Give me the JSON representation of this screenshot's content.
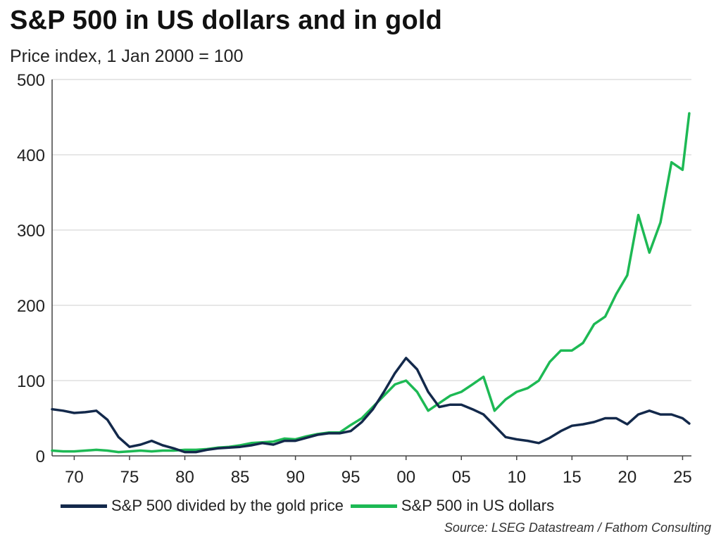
{
  "title": "S&P 500 in US dollars and in gold",
  "subtitle": "Price index, 1 Jan 2000 = 100",
  "source": "Source: LSEG Datastream / Fathom Consulting",
  "colors": {
    "gold_series": "#13294b",
    "usd_series": "#1db954",
    "gridline": "#cfcfcf",
    "axis": "#444444"
  },
  "chart_data": {
    "type": "line",
    "title": "S&P 500 in US dollars and in gold",
    "subtitle": "Price index, 1 Jan 2000 = 100",
    "xlabel": "",
    "ylabel": "",
    "xlim": [
      1968,
      2025.8
    ],
    "ylim": [
      0,
      500
    ],
    "yticks": [
      0,
      100,
      200,
      300,
      400,
      500
    ],
    "ytick_labels": [
      "0",
      "100",
      "200",
      "300",
      "400",
      "500"
    ],
    "xticks": [
      1970,
      1975,
      1980,
      1985,
      1990,
      1995,
      2000,
      2005,
      2010,
      2015,
      2020,
      2025
    ],
    "xtick_labels": [
      "70",
      "75",
      "80",
      "85",
      "90",
      "95",
      "00",
      "05",
      "10",
      "15",
      "20",
      "25"
    ],
    "grid": true,
    "legend_position": "bottom",
    "series": [
      {
        "name": "S&P 500 divided by the gold price",
        "x": [
          1968,
          1969,
          1970,
          1971,
          1972,
          1973,
          1974,
          1975,
          1976,
          1977,
          1978,
          1979,
          1980,
          1981,
          1982,
          1983,
          1984,
          1985,
          1986,
          1987,
          1988,
          1989,
          1990,
          1991,
          1992,
          1993,
          1994,
          1995,
          1996,
          1997,
          1998,
          1999,
          2000,
          2001,
          2002,
          2003,
          2004,
          2005,
          2006,
          2007,
          2008,
          2009,
          2010,
          2011,
          2012,
          2013,
          2014,
          2015,
          2016,
          2017,
          2018,
          2019,
          2020,
          2021,
          2022,
          2023,
          2024,
          2025,
          2025.6
        ],
        "values": [
          62,
          60,
          57,
          58,
          60,
          48,
          25,
          12,
          15,
          20,
          14,
          10,
          5,
          5,
          8,
          10,
          11,
          12,
          14,
          17,
          15,
          20,
          20,
          24,
          28,
          30,
          30,
          33,
          45,
          62,
          85,
          110,
          130,
          115,
          85,
          65,
          68,
          68,
          62,
          55,
          40,
          25,
          22,
          20,
          17,
          24,
          33,
          40,
          42,
          45,
          50,
          50,
          42,
          55,
          60,
          55,
          55,
          50,
          43
        ]
      },
      {
        "name": "S&P 500 in US dollars",
        "x": [
          1968,
          1969,
          1970,
          1971,
          1972,
          1973,
          1974,
          1975,
          1976,
          1977,
          1978,
          1979,
          1980,
          1981,
          1982,
          1983,
          1984,
          1985,
          1986,
          1987,
          1988,
          1989,
          1990,
          1991,
          1992,
          1993,
          1994,
          1995,
          1996,
          1997,
          1998,
          1999,
          2000,
          2001,
          2002,
          2003,
          2004,
          2005,
          2006,
          2007,
          2008,
          2009,
          2010,
          2011,
          2012,
          2013,
          2014,
          2015,
          2016,
          2017,
          2018,
          2019,
          2020,
          2021,
          2022,
          2023,
          2024,
          2025,
          2025.6
        ],
        "values": [
          7,
          6,
          6,
          7,
          8,
          7,
          5,
          6,
          7,
          6,
          7,
          7,
          8,
          8,
          9,
          11,
          12,
          14,
          17,
          18,
          19,
          23,
          22,
          26,
          29,
          31,
          31,
          41,
          50,
          65,
          80,
          95,
          100,
          85,
          60,
          70,
          80,
          85,
          95,
          105,
          60,
          75,
          85,
          90,
          100,
          125,
          140,
          140,
          150,
          175,
          185,
          215,
          240,
          320,
          270,
          310,
          390,
          380,
          455
        ]
      }
    ]
  }
}
